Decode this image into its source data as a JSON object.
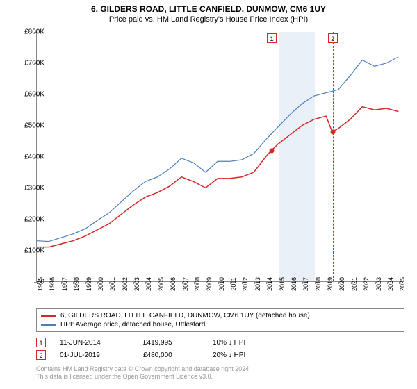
{
  "title": "6, GILDERS ROAD, LITTLE CANFIELD, DUNMOW, CM6 1UY",
  "subtitle": "Price paid vs. HM Land Registry's House Price Index (HPI)",
  "chart": {
    "type": "line",
    "background_color": "#ffffff",
    "grid_color": "#cccccc",
    "x_years": [
      1995,
      1996,
      1997,
      1998,
      1999,
      2000,
      2001,
      2002,
      2003,
      2004,
      2005,
      2006,
      2007,
      2008,
      2009,
      2010,
      2011,
      2012,
      2013,
      2014,
      2015,
      2016,
      2017,
      2018,
      2019,
      2020,
      2021,
      2022,
      2023,
      2024,
      2025
    ],
    "x_min": 1995,
    "x_max": 2025.5,
    "ylim": [
      0,
      800000
    ],
    "ytick_step": 100000,
    "ytick_prefix": "£",
    "ytick_suffix": "K",
    "shade_band": {
      "start": 2015,
      "end": 2018,
      "color": "#eaf0f7"
    },
    "series1": {
      "label": "6, GILDERS ROAD, LITTLE CANFIELD, DUNMOW, CM6 1UY (detached house)",
      "color": "#d62728",
      "width": 1.5,
      "data": [
        [
          1995,
          110000
        ],
        [
          1996,
          110000
        ],
        [
          1997,
          120000
        ],
        [
          1998,
          130000
        ],
        [
          1999,
          145000
        ],
        [
          2000,
          165000
        ],
        [
          2001,
          185000
        ],
        [
          2002,
          215000
        ],
        [
          2003,
          245000
        ],
        [
          2004,
          270000
        ],
        [
          2005,
          285000
        ],
        [
          2006,
          305000
        ],
        [
          2007,
          335000
        ],
        [
          2008,
          320000
        ],
        [
          2009,
          300000
        ],
        [
          2010,
          330000
        ],
        [
          2011,
          330000
        ],
        [
          2012,
          335000
        ],
        [
          2013,
          350000
        ],
        [
          2014,
          400000
        ],
        [
          2014.45,
          419995
        ],
        [
          2015,
          440000
        ],
        [
          2016,
          470000
        ],
        [
          2017,
          500000
        ],
        [
          2018,
          520000
        ],
        [
          2019,
          530000
        ],
        [
          2019.5,
          480000
        ],
        [
          2020,
          490000
        ],
        [
          2021,
          520000
        ],
        [
          2022,
          560000
        ],
        [
          2023,
          550000
        ],
        [
          2024,
          555000
        ],
        [
          2025,
          545000
        ]
      ]
    },
    "series2": {
      "label": "HPI: Average price, detached house, Uttlesford",
      "color": "#4a7ebb",
      "width": 1.2,
      "data": [
        [
          1995,
          130000
        ],
        [
          1996,
          128000
        ],
        [
          1997,
          140000
        ],
        [
          1998,
          152000
        ],
        [
          1999,
          168000
        ],
        [
          2000,
          195000
        ],
        [
          2001,
          220000
        ],
        [
          2002,
          255000
        ],
        [
          2003,
          290000
        ],
        [
          2004,
          320000
        ],
        [
          2005,
          335000
        ],
        [
          2006,
          360000
        ],
        [
          2007,
          395000
        ],
        [
          2008,
          380000
        ],
        [
          2009,
          350000
        ],
        [
          2010,
          385000
        ],
        [
          2011,
          385000
        ],
        [
          2012,
          390000
        ],
        [
          2013,
          410000
        ],
        [
          2014,
          455000
        ],
        [
          2015,
          495000
        ],
        [
          2016,
          535000
        ],
        [
          2017,
          570000
        ],
        [
          2018,
          595000
        ],
        [
          2019,
          605000
        ],
        [
          2020,
          615000
        ],
        [
          2021,
          660000
        ],
        [
          2022,
          710000
        ],
        [
          2023,
          690000
        ],
        [
          2024,
          700000
        ],
        [
          2025,
          720000
        ]
      ]
    },
    "markers": [
      {
        "n": 1,
        "year": 2014.45,
        "value": 419995,
        "color": "#d62728"
      },
      {
        "n": 2,
        "year": 2019.5,
        "value": 480000,
        "color": "#d62728"
      }
    ]
  },
  "sales": [
    {
      "n": 1,
      "date": "11-JUN-2014",
      "price": "£419,995",
      "diff": "10% ↓ HPI",
      "color": "#d62728"
    },
    {
      "n": 2,
      "date": "01-JUL-2019",
      "price": "£480,000",
      "diff": "20% ↓ HPI",
      "color": "#d62728"
    }
  ],
  "footer_line1": "Contains HM Land Registry data © Crown copyright and database right 2024.",
  "footer_line2": "This data is licensed under the Open Government Licence v3.0."
}
